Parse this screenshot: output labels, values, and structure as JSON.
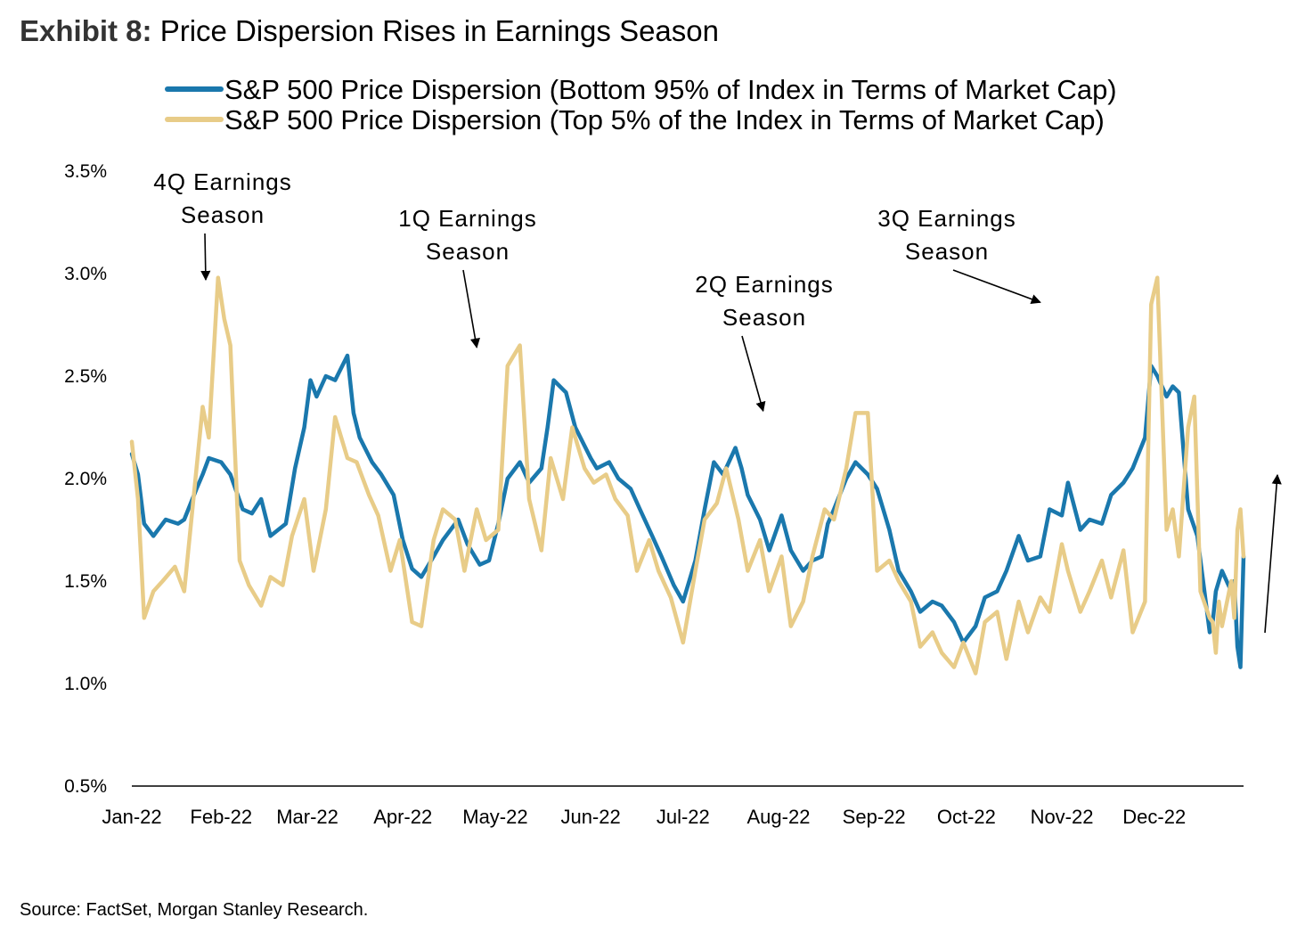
{
  "exhibit": {
    "label": "Exhibit 8:",
    "title": "Price Dispersion Rises in Earnings Season"
  },
  "source": "Source: FactSet, Morgan Stanley Research.",
  "colors": {
    "bottom95": "#1a78ad",
    "top5": "#e8cc88",
    "axis": "#000000"
  },
  "chart_data": {
    "type": "line",
    "title": "Price Dispersion Rises in Earnings Season",
    "x_tick_labels": [
      "Jan-22",
      "Feb-22",
      "Mar-22",
      "Apr-22",
      "May-22",
      "Jun-22",
      "Jul-22",
      "Aug-22",
      "Sep-22",
      "Oct-22",
      "Nov-22",
      "Dec-22"
    ],
    "y_tick_labels": [
      "0.5%",
      "1.0%",
      "1.5%",
      "2.0%",
      "2.5%",
      "3.0%",
      "3.5%"
    ],
    "ylim": [
      0.5,
      3.5
    ],
    "x_range": [
      "2022-01-03",
      "2022-12-30"
    ],
    "grid": false,
    "legend_position": "top",
    "annotations": [
      {
        "text": [
          "4Q Earnings",
          "Season"
        ],
        "date": "2022-01-27",
        "value": 2.97
      },
      {
        "text": [
          "1Q Earnings",
          "Season"
        ],
        "date": "2022-04-25",
        "value": 2.64
      },
      {
        "text": [
          "2Q Earnings",
          "Season"
        ],
        "date": "2022-07-27",
        "value": 2.33
      },
      {
        "text": [
          "3Q Earnings",
          "Season"
        ],
        "date": "2022-10-25",
        "value": 2.86
      }
    ],
    "series": [
      {
        "name": "S&P 500 Price Dispersion (Bottom 95% of Index in Terms of Market Cap)",
        "color": "#1a78ad",
        "points": [
          [
            "2022-01-03",
            2.12
          ],
          [
            "2022-01-05",
            2.02
          ],
          [
            "2022-01-07",
            1.78
          ],
          [
            "2022-01-10",
            1.72
          ],
          [
            "2022-01-12",
            1.76
          ],
          [
            "2022-01-14",
            1.8
          ],
          [
            "2022-01-18",
            1.78
          ],
          [
            "2022-01-20",
            1.8
          ],
          [
            "2022-01-24",
            1.95
          ],
          [
            "2022-01-26",
            2.02
          ],
          [
            "2022-01-28",
            2.1
          ],
          [
            "2022-02-01",
            2.08
          ],
          [
            "2022-02-04",
            2.02
          ],
          [
            "2022-02-08",
            1.85
          ],
          [
            "2022-02-11",
            1.83
          ],
          [
            "2022-02-14",
            1.9
          ],
          [
            "2022-02-17",
            1.72
          ],
          [
            "2022-02-22",
            1.78
          ],
          [
            "2022-02-25",
            2.05
          ],
          [
            "2022-02-28",
            2.25
          ],
          [
            "2022-03-02",
            2.48
          ],
          [
            "2022-03-04",
            2.4
          ],
          [
            "2022-03-07",
            2.5
          ],
          [
            "2022-03-10",
            2.48
          ],
          [
            "2022-03-14",
            2.6
          ],
          [
            "2022-03-16",
            2.32
          ],
          [
            "2022-03-18",
            2.2
          ],
          [
            "2022-03-22",
            2.08
          ],
          [
            "2022-03-25",
            2.02
          ],
          [
            "2022-03-29",
            1.92
          ],
          [
            "2022-04-01",
            1.7
          ],
          [
            "2022-04-04",
            1.56
          ],
          [
            "2022-04-07",
            1.52
          ],
          [
            "2022-04-11",
            1.62
          ],
          [
            "2022-04-14",
            1.7
          ],
          [
            "2022-04-19",
            1.8
          ],
          [
            "2022-04-22",
            1.68
          ],
          [
            "2022-04-26",
            1.58
          ],
          [
            "2022-04-29",
            1.6
          ],
          [
            "2022-05-02",
            1.78
          ],
          [
            "2022-05-05",
            2.0
          ],
          [
            "2022-05-09",
            2.08
          ],
          [
            "2022-05-12",
            1.98
          ],
          [
            "2022-05-16",
            2.05
          ],
          [
            "2022-05-18",
            2.25
          ],
          [
            "2022-05-20",
            2.48
          ],
          [
            "2022-05-24",
            2.42
          ],
          [
            "2022-05-27",
            2.25
          ],
          [
            "2022-06-01",
            2.1
          ],
          [
            "2022-06-03",
            2.05
          ],
          [
            "2022-06-07",
            2.08
          ],
          [
            "2022-06-10",
            2.0
          ],
          [
            "2022-06-14",
            1.95
          ],
          [
            "2022-06-17",
            1.85
          ],
          [
            "2022-06-21",
            1.72
          ],
          [
            "2022-06-24",
            1.62
          ],
          [
            "2022-06-28",
            1.48
          ],
          [
            "2022-07-01",
            1.4
          ],
          [
            "2022-07-05",
            1.6
          ],
          [
            "2022-07-08",
            1.85
          ],
          [
            "2022-07-11",
            2.08
          ],
          [
            "2022-07-14",
            2.02
          ],
          [
            "2022-07-18",
            2.15
          ],
          [
            "2022-07-20",
            2.05
          ],
          [
            "2022-07-22",
            1.92
          ],
          [
            "2022-07-26",
            1.8
          ],
          [
            "2022-07-29",
            1.65
          ],
          [
            "2022-08-02",
            1.82
          ],
          [
            "2022-08-05",
            1.65
          ],
          [
            "2022-08-09",
            1.55
          ],
          [
            "2022-08-12",
            1.6
          ],
          [
            "2022-08-15",
            1.62
          ],
          [
            "2022-08-17",
            1.78
          ],
          [
            "2022-08-19",
            1.85
          ],
          [
            "2022-08-23",
            2.0
          ],
          [
            "2022-08-26",
            2.08
          ],
          [
            "2022-08-30",
            2.02
          ],
          [
            "2022-09-02",
            1.95
          ],
          [
            "2022-09-06",
            1.75
          ],
          [
            "2022-09-09",
            1.55
          ],
          [
            "2022-09-13",
            1.45
          ],
          [
            "2022-09-16",
            1.35
          ],
          [
            "2022-09-20",
            1.4
          ],
          [
            "2022-09-23",
            1.38
          ],
          [
            "2022-09-27",
            1.3
          ],
          [
            "2022-09-30",
            1.2
          ],
          [
            "2022-10-04",
            1.28
          ],
          [
            "2022-10-07",
            1.42
          ],
          [
            "2022-10-11",
            1.45
          ],
          [
            "2022-10-14",
            1.55
          ],
          [
            "2022-10-18",
            1.72
          ],
          [
            "2022-10-21",
            1.6
          ],
          [
            "2022-10-25",
            1.62
          ],
          [
            "2022-10-28",
            1.85
          ],
          [
            "2022-11-01",
            1.82
          ],
          [
            "2022-11-03",
            1.98
          ],
          [
            "2022-11-07",
            1.75
          ],
          [
            "2022-11-10",
            1.8
          ],
          [
            "2022-11-14",
            1.78
          ],
          [
            "2022-11-17",
            1.92
          ],
          [
            "2022-11-21",
            1.98
          ],
          [
            "2022-11-24",
            2.05
          ],
          [
            "2022-11-28",
            2.2
          ],
          [
            "2022-11-30",
            2.55
          ],
          [
            "2022-12-02",
            2.5
          ],
          [
            "2022-12-05",
            2.4
          ],
          [
            "2022-12-07",
            2.45
          ],
          [
            "2022-12-09",
            2.42
          ],
          [
            "2022-12-12",
            1.85
          ],
          [
            "2022-12-15",
            1.72
          ],
          [
            "2022-12-19",
            1.25
          ],
          [
            "2022-12-20",
            1.3
          ],
          [
            "2022-12-21",
            1.45
          ],
          [
            "2022-12-22",
            1.5
          ],
          [
            "2022-12-23",
            1.55
          ],
          [
            "2022-12-26",
            1.45
          ],
          [
            "2022-12-27",
            1.5
          ],
          [
            "2022-12-28",
            1.18
          ],
          [
            "2022-12-29",
            1.08
          ],
          [
            "2022-12-30",
            1.62
          ]
        ]
      },
      {
        "name": "S&P 500 Price Dispersion (Top 5% of the Index in Terms of Market Cap)",
        "color": "#e8cc88",
        "points": [
          [
            "2022-01-03",
            2.18
          ],
          [
            "2022-01-05",
            1.9
          ],
          [
            "2022-01-07",
            1.32
          ],
          [
            "2022-01-10",
            1.45
          ],
          [
            "2022-01-13",
            1.5
          ],
          [
            "2022-01-17",
            1.57
          ],
          [
            "2022-01-20",
            1.45
          ],
          [
            "2022-01-24",
            2.05
          ],
          [
            "2022-01-26",
            2.35
          ],
          [
            "2022-01-28",
            2.2
          ],
          [
            "2022-01-31",
            2.98
          ],
          [
            "2022-02-02",
            2.78
          ],
          [
            "2022-02-04",
            2.65
          ],
          [
            "2022-02-07",
            1.6
          ],
          [
            "2022-02-10",
            1.48
          ],
          [
            "2022-02-14",
            1.38
          ],
          [
            "2022-02-17",
            1.52
          ],
          [
            "2022-02-21",
            1.48
          ],
          [
            "2022-02-24",
            1.72
          ],
          [
            "2022-02-28",
            1.9
          ],
          [
            "2022-03-03",
            1.55
          ],
          [
            "2022-03-07",
            1.85
          ],
          [
            "2022-03-10",
            2.3
          ],
          [
            "2022-03-14",
            2.1
          ],
          [
            "2022-03-17",
            2.08
          ],
          [
            "2022-03-21",
            1.92
          ],
          [
            "2022-03-24",
            1.82
          ],
          [
            "2022-03-28",
            1.55
          ],
          [
            "2022-03-31",
            1.7
          ],
          [
            "2022-04-04",
            1.3
          ],
          [
            "2022-04-07",
            1.28
          ],
          [
            "2022-04-11",
            1.7
          ],
          [
            "2022-04-14",
            1.85
          ],
          [
            "2022-04-18",
            1.8
          ],
          [
            "2022-04-21",
            1.55
          ],
          [
            "2022-04-25",
            1.85
          ],
          [
            "2022-04-28",
            1.7
          ],
          [
            "2022-05-02",
            1.75
          ],
          [
            "2022-05-05",
            2.55
          ],
          [
            "2022-05-09",
            2.65
          ],
          [
            "2022-05-12",
            1.9
          ],
          [
            "2022-05-16",
            1.65
          ],
          [
            "2022-05-19",
            2.1
          ],
          [
            "2022-05-23",
            1.9
          ],
          [
            "2022-05-26",
            2.25
          ],
          [
            "2022-05-30",
            2.05
          ],
          [
            "2022-06-02",
            1.98
          ],
          [
            "2022-06-06",
            2.02
          ],
          [
            "2022-06-09",
            1.9
          ],
          [
            "2022-06-13",
            1.82
          ],
          [
            "2022-06-16",
            1.55
          ],
          [
            "2022-06-20",
            1.7
          ],
          [
            "2022-06-23",
            1.55
          ],
          [
            "2022-06-27",
            1.42
          ],
          [
            "2022-07-01",
            1.2
          ],
          [
            "2022-07-05",
            1.55
          ],
          [
            "2022-07-08",
            1.8
          ],
          [
            "2022-07-12",
            1.88
          ],
          [
            "2022-07-15",
            2.05
          ],
          [
            "2022-07-19",
            1.8
          ],
          [
            "2022-07-22",
            1.55
          ],
          [
            "2022-07-26",
            1.7
          ],
          [
            "2022-07-29",
            1.45
          ],
          [
            "2022-08-02",
            1.62
          ],
          [
            "2022-08-05",
            1.28
          ],
          [
            "2022-08-09",
            1.4
          ],
          [
            "2022-08-12",
            1.62
          ],
          [
            "2022-08-16",
            1.85
          ],
          [
            "2022-08-19",
            1.8
          ],
          [
            "2022-08-23",
            2.05
          ],
          [
            "2022-08-26",
            2.32
          ],
          [
            "2022-08-30",
            2.32
          ],
          [
            "2022-09-02",
            1.55
          ],
          [
            "2022-09-06",
            1.6
          ],
          [
            "2022-09-09",
            1.5
          ],
          [
            "2022-09-13",
            1.4
          ],
          [
            "2022-09-16",
            1.18
          ],
          [
            "2022-09-20",
            1.25
          ],
          [
            "2022-09-23",
            1.15
          ],
          [
            "2022-09-27",
            1.08
          ],
          [
            "2022-09-30",
            1.2
          ],
          [
            "2022-10-04",
            1.05
          ],
          [
            "2022-10-07",
            1.3
          ],
          [
            "2022-10-11",
            1.35
          ],
          [
            "2022-10-14",
            1.12
          ],
          [
            "2022-10-18",
            1.4
          ],
          [
            "2022-10-21",
            1.25
          ],
          [
            "2022-10-25",
            1.42
          ],
          [
            "2022-10-28",
            1.35
          ],
          [
            "2022-11-01",
            1.68
          ],
          [
            "2022-11-03",
            1.55
          ],
          [
            "2022-11-07",
            1.35
          ],
          [
            "2022-11-10",
            1.45
          ],
          [
            "2022-11-14",
            1.6
          ],
          [
            "2022-11-17",
            1.42
          ],
          [
            "2022-11-21",
            1.65
          ],
          [
            "2022-11-24",
            1.25
          ],
          [
            "2022-11-28",
            1.4
          ],
          [
            "2022-11-30",
            2.85
          ],
          [
            "2022-12-02",
            2.98
          ],
          [
            "2022-12-05",
            1.75
          ],
          [
            "2022-12-07",
            1.85
          ],
          [
            "2022-12-09",
            1.62
          ],
          [
            "2022-12-12",
            2.25
          ],
          [
            "2022-12-14",
            2.4
          ],
          [
            "2022-12-16",
            1.45
          ],
          [
            "2022-12-19",
            1.32
          ],
          [
            "2022-12-20",
            1.3
          ],
          [
            "2022-12-21",
            1.15
          ],
          [
            "2022-12-22",
            1.4
          ],
          [
            "2022-12-23",
            1.28
          ],
          [
            "2022-12-26",
            1.5
          ],
          [
            "2022-12-27",
            1.32
          ],
          [
            "2022-12-28",
            1.75
          ],
          [
            "2022-12-29",
            1.85
          ],
          [
            "2022-12-30",
            1.62
          ]
        ]
      }
    ]
  }
}
